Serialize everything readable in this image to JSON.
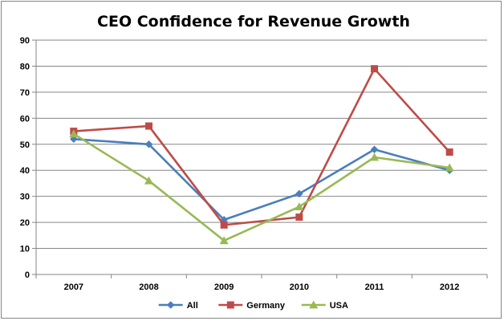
{
  "chart_data": {
    "type": "line",
    "title": "CEO Confidence for Revenue Growth",
    "xlabel": "",
    "ylabel": "",
    "categories": [
      "2007",
      "2008",
      "2009",
      "2010",
      "2011",
      "2012"
    ],
    "ylim": [
      0,
      90
    ],
    "yticks": [
      "0",
      "10",
      "20",
      "30",
      "40",
      "50",
      "60",
      "70",
      "80",
      "90"
    ],
    "grid": true,
    "legend_position": "bottom",
    "series": [
      {
        "name": "All",
        "color": "#4a7ebb",
        "marker": "diamond",
        "values": [
          52,
          50,
          21,
          31,
          48,
          40
        ]
      },
      {
        "name": "Germany",
        "color": "#be4b48",
        "marker": "square",
        "values": [
          55,
          57,
          19,
          22,
          79,
          47
        ]
      },
      {
        "name": "USA",
        "color": "#98b954",
        "marker": "triangle",
        "values": [
          54,
          36,
          13,
          26,
          45,
          41
        ]
      }
    ]
  }
}
